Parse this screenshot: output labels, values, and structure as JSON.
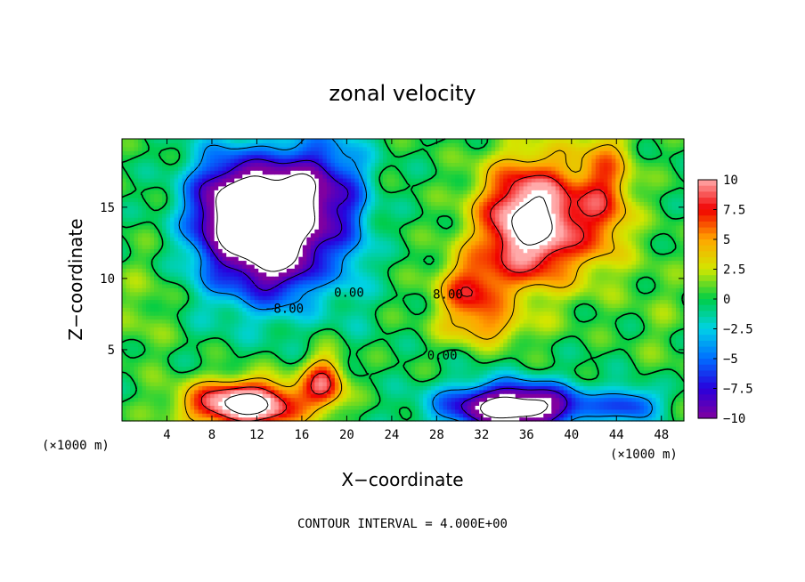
{
  "chart_data": {
    "type": "heatmap",
    "title": "zonal velocity",
    "xlabel": "X−coordinate",
    "ylabel": "Z−coordinate",
    "x_unit_left": "(×1000 m)",
    "x_unit_right": "(×1000 m)",
    "footnote": "CONTOUR INTERVAL = 4.000E+00",
    "xlim": [
      0,
      50
    ],
    "ylim": [
      0,
      19.8
    ],
    "xticks": [
      4,
      8,
      12,
      16,
      20,
      24,
      28,
      32,
      36,
      40,
      44,
      48
    ],
    "yticks": [
      5,
      10,
      15
    ],
    "colorbar": {
      "min": -10,
      "max": 10,
      "tick_values": [
        10,
        7.5,
        5,
        2.5,
        0,
        -2.5,
        -5,
        -7.5,
        -10
      ],
      "tick_labels": [
        "10",
        "7.5",
        "5",
        "2.5",
        "0",
        "−2.5",
        "−5",
        "−7.5",
        "−10"
      ]
    },
    "contour_labels": [
      {
        "text": "−8.00",
        "x": 14.5,
        "z": 7.6
      },
      {
        "text": "0.00",
        "x": 20.2,
        "z": 8.7
      },
      {
        "text": "8.00",
        "x": 29.0,
        "z": 8.6
      },
      {
        "text": "0.00",
        "x": 28.5,
        "z": 4.3
      }
    ],
    "features": [
      {
        "x": 13.5,
        "z": 12.5,
        "sx": 4.5,
        "sz": 4.0,
        "amp": -14
      },
      {
        "x": 11.0,
        "z": 15.5,
        "sx": 4.0,
        "sz": 3.2,
        "amp": -10
      },
      {
        "x": 17.0,
        "z": 16.5,
        "sx": 3.5,
        "sz": 3.5,
        "amp": -8
      },
      {
        "x": 8.0,
        "z": 14.0,
        "sx": 3.0,
        "sz": 5.0,
        "amp": -4
      },
      {
        "x": 20.5,
        "z": 14.0,
        "sx": 2.0,
        "sz": 6.0,
        "amp": -3
      },
      {
        "x": 36.5,
        "z": 14.0,
        "sx": 4.5,
        "sz": 4.2,
        "amp": 14
      },
      {
        "x": 31.0,
        "z": 9.0,
        "sx": 3.0,
        "sz": 2.5,
        "amp": 7
      },
      {
        "x": 43.0,
        "z": 16.0,
        "sx": 2.5,
        "sz": 5.0,
        "amp": 6
      },
      {
        "x": 33.0,
        "z": 6.5,
        "sx": 4.0,
        "sz": 1.2,
        "amp": 3
      },
      {
        "x": 11.0,
        "z": 1.2,
        "sx": 5.0,
        "sz": 1.6,
        "amp": 14
      },
      {
        "x": 18.0,
        "z": 2.8,
        "sx": 1.8,
        "sz": 1.8,
        "amp": 8
      },
      {
        "x": 35.0,
        "z": 1.0,
        "sx": 6.0,
        "sz": 1.6,
        "amp": -15
      },
      {
        "x": 45.5,
        "z": 1.2,
        "sx": 2.5,
        "sz": 1.2,
        "amp": -6
      },
      {
        "x": 2.0,
        "z": 8.0,
        "sx": 2.5,
        "sz": 4.0,
        "amp": 1.5
      },
      {
        "x": 48.0,
        "z": 8.0,
        "sx": 2.5,
        "sz": 6.0,
        "amp": 1.0
      }
    ]
  }
}
